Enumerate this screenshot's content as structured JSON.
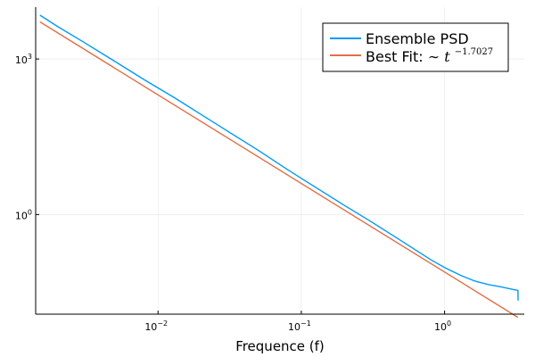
{
  "chart_data": {
    "type": "line",
    "xlabel": "Frequence (f)",
    "ylabel": "",
    "x_scale": "log10",
    "y_scale": "log10",
    "xlim": [
      0.0014,
      3.6
    ],
    "ylim": [
      0.012,
      10000
    ],
    "grid": true,
    "legend_position": "top-right",
    "x_ticks": [
      {
        "value": 0.01,
        "base": "10",
        "exp": "−2"
      },
      {
        "value": 0.1,
        "base": "10",
        "exp": "−1"
      },
      {
        "value": 1,
        "base": "10",
        "exp": "0"
      }
    ],
    "y_ticks": [
      {
        "value": 1,
        "base": "10",
        "exp": "0"
      },
      {
        "value": 1000,
        "base": "10",
        "exp": "3"
      }
    ],
    "series": [
      {
        "name": "Ensemble PSD",
        "color": "#009AFA",
        "points": [
          [
            0.0015,
            7000
          ],
          [
            0.002,
            4200
          ],
          [
            0.003,
            2150
          ],
          [
            0.005,
            900
          ],
          [
            0.008,
            400
          ],
          [
            0.013,
            180
          ],
          [
            0.02,
            85
          ],
          [
            0.03,
            42
          ],
          [
            0.05,
            17.4
          ],
          [
            0.08,
            7.4
          ],
          [
            0.1,
            5.0
          ],
          [
            0.2,
            1.5
          ],
          [
            0.3,
            0.76
          ],
          [
            0.5,
            0.31
          ],
          [
            0.8,
            0.135
          ],
          [
            1.0,
            0.095
          ],
          [
            1.3,
            0.067
          ],
          [
            1.6,
            0.053
          ],
          [
            2.0,
            0.045
          ],
          [
            2.5,
            0.04
          ],
          [
            3.0,
            0.036
          ],
          [
            3.25,
            0.0345
          ],
          [
            3.26,
            0.022
          ]
        ]
      },
      {
        "name_text": "Best Fit: ",
        "name_math": "∼ t",
        "name_exponent": "−1.7027",
        "color": "#E26F46",
        "points": [
          [
            0.0015,
            5200
          ],
          [
            3.25,
            0.0104
          ]
        ]
      }
    ]
  }
}
